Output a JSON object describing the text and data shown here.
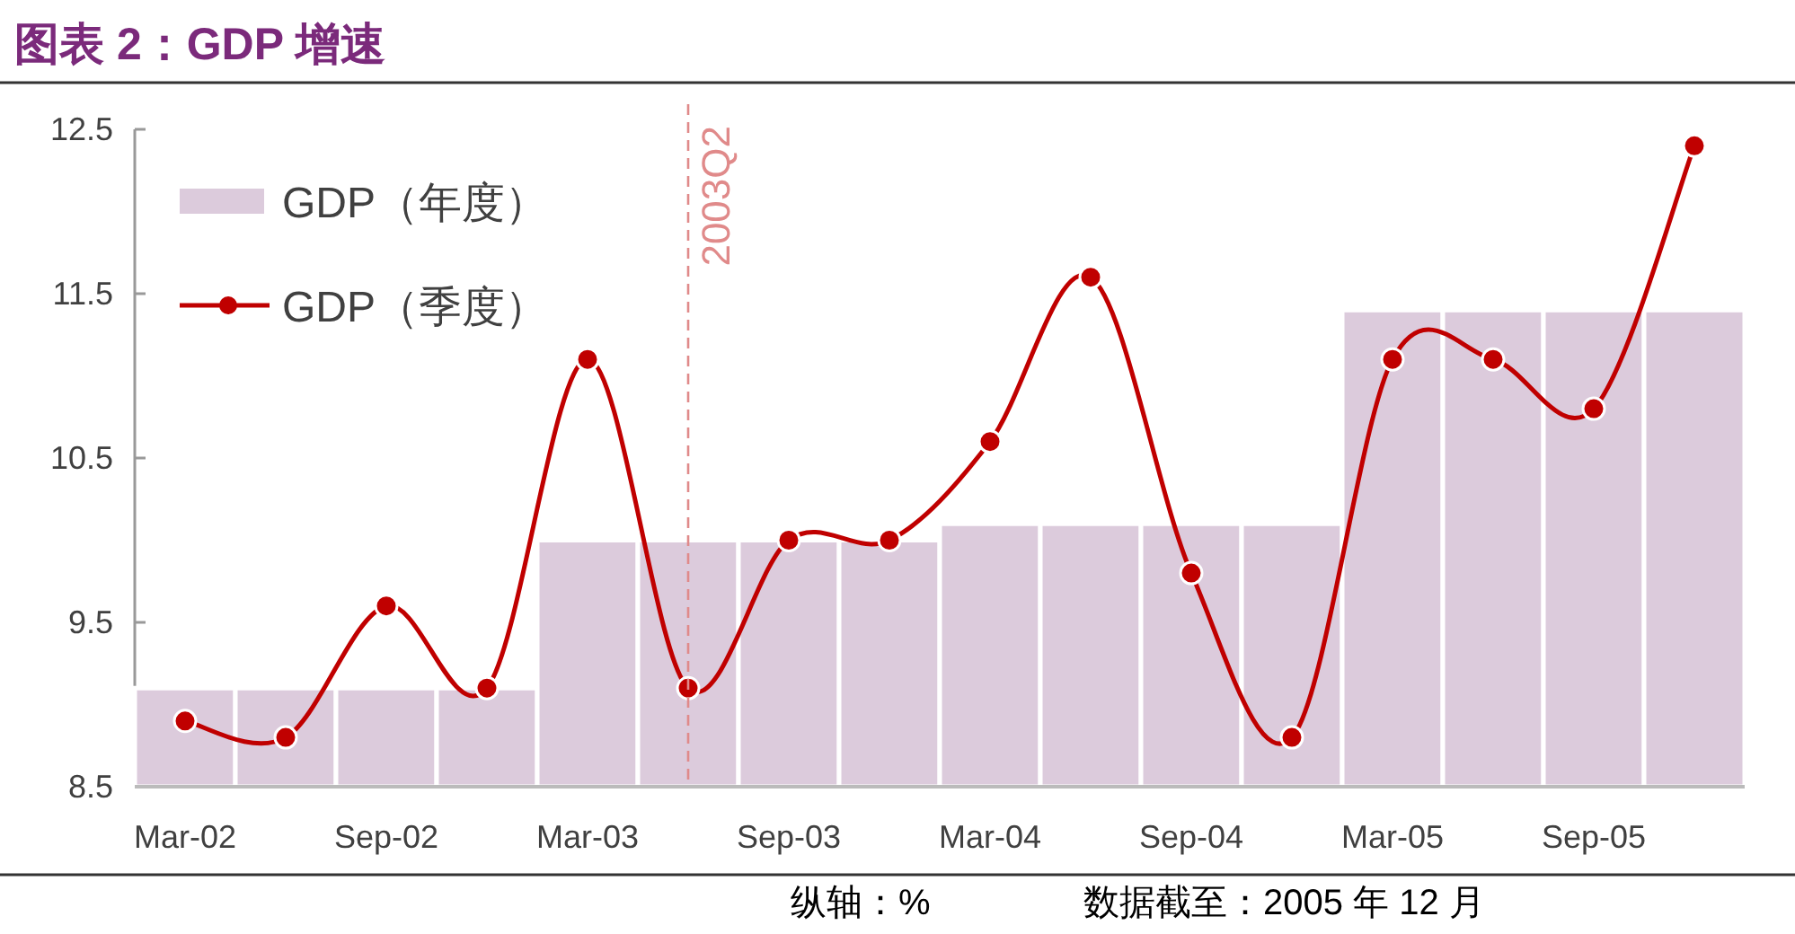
{
  "chart_data": {
    "type": "bar",
    "title": "图表 2：GDP 增速",
    "x": [
      "2002-03",
      "2002-06",
      "2002-09",
      "2002-12",
      "2003-03",
      "2003-06",
      "2003-09",
      "2003-12",
      "2004-03",
      "2004-06",
      "2004-09",
      "2004-12",
      "2005-03",
      "2005-06",
      "2005-09",
      "2005-12"
    ],
    "series": [
      {
        "name": "GDP（年度）",
        "color": "#dccbdc",
        "values": [
          9.1,
          9.1,
          9.1,
          9.1,
          10.0,
          10.0,
          10.0,
          10.0,
          10.1,
          10.1,
          10.1,
          10.1,
          11.4,
          11.4,
          11.4,
          11.4
        ]
      },
      {
        "name": "GDP（季度）",
        "type": "line",
        "color": "#c00000",
        "values": [
          8.9,
          8.8,
          9.6,
          9.1,
          11.1,
          9.1,
          10.0,
          10.0,
          10.6,
          11.6,
          9.8,
          8.8,
          11.1,
          11.1,
          10.8,
          12.4
        ]
      }
    ],
    "xlim": [
      "2002-01-16",
      "2006-01-16"
    ],
    "xticks": [
      {
        "value": "2002-03",
        "label": "Mar-02"
      },
      {
        "value": "2002-09",
        "label": "Sep-02"
      },
      {
        "value": "2003-03",
        "label": "Mar-03"
      },
      {
        "value": "2003-09",
        "label": "Sep-03"
      },
      {
        "value": "2004-03",
        "label": "Mar-04"
      },
      {
        "value": "2004-09",
        "label": "Sep-04"
      },
      {
        "value": "2005-03",
        "label": "Mar-05"
      },
      {
        "value": "2005-09",
        "label": "Sep-05"
      }
    ],
    "ylim": [
      8.5,
      12.5
    ],
    "yticks": [
      8.5,
      9.5,
      10.5,
      11.5,
      12.5
    ],
    "ref_lines": [
      {
        "axis": "x",
        "value": "2003-06",
        "label": "2003Q2",
        "color": "#e08a8a",
        "line_style": "dashed"
      }
    ],
    "legend": "top left",
    "marker": "circle",
    "annotations": [
      "纵轴：%",
      "数据截至：2005 年 12 月"
    ]
  }
}
